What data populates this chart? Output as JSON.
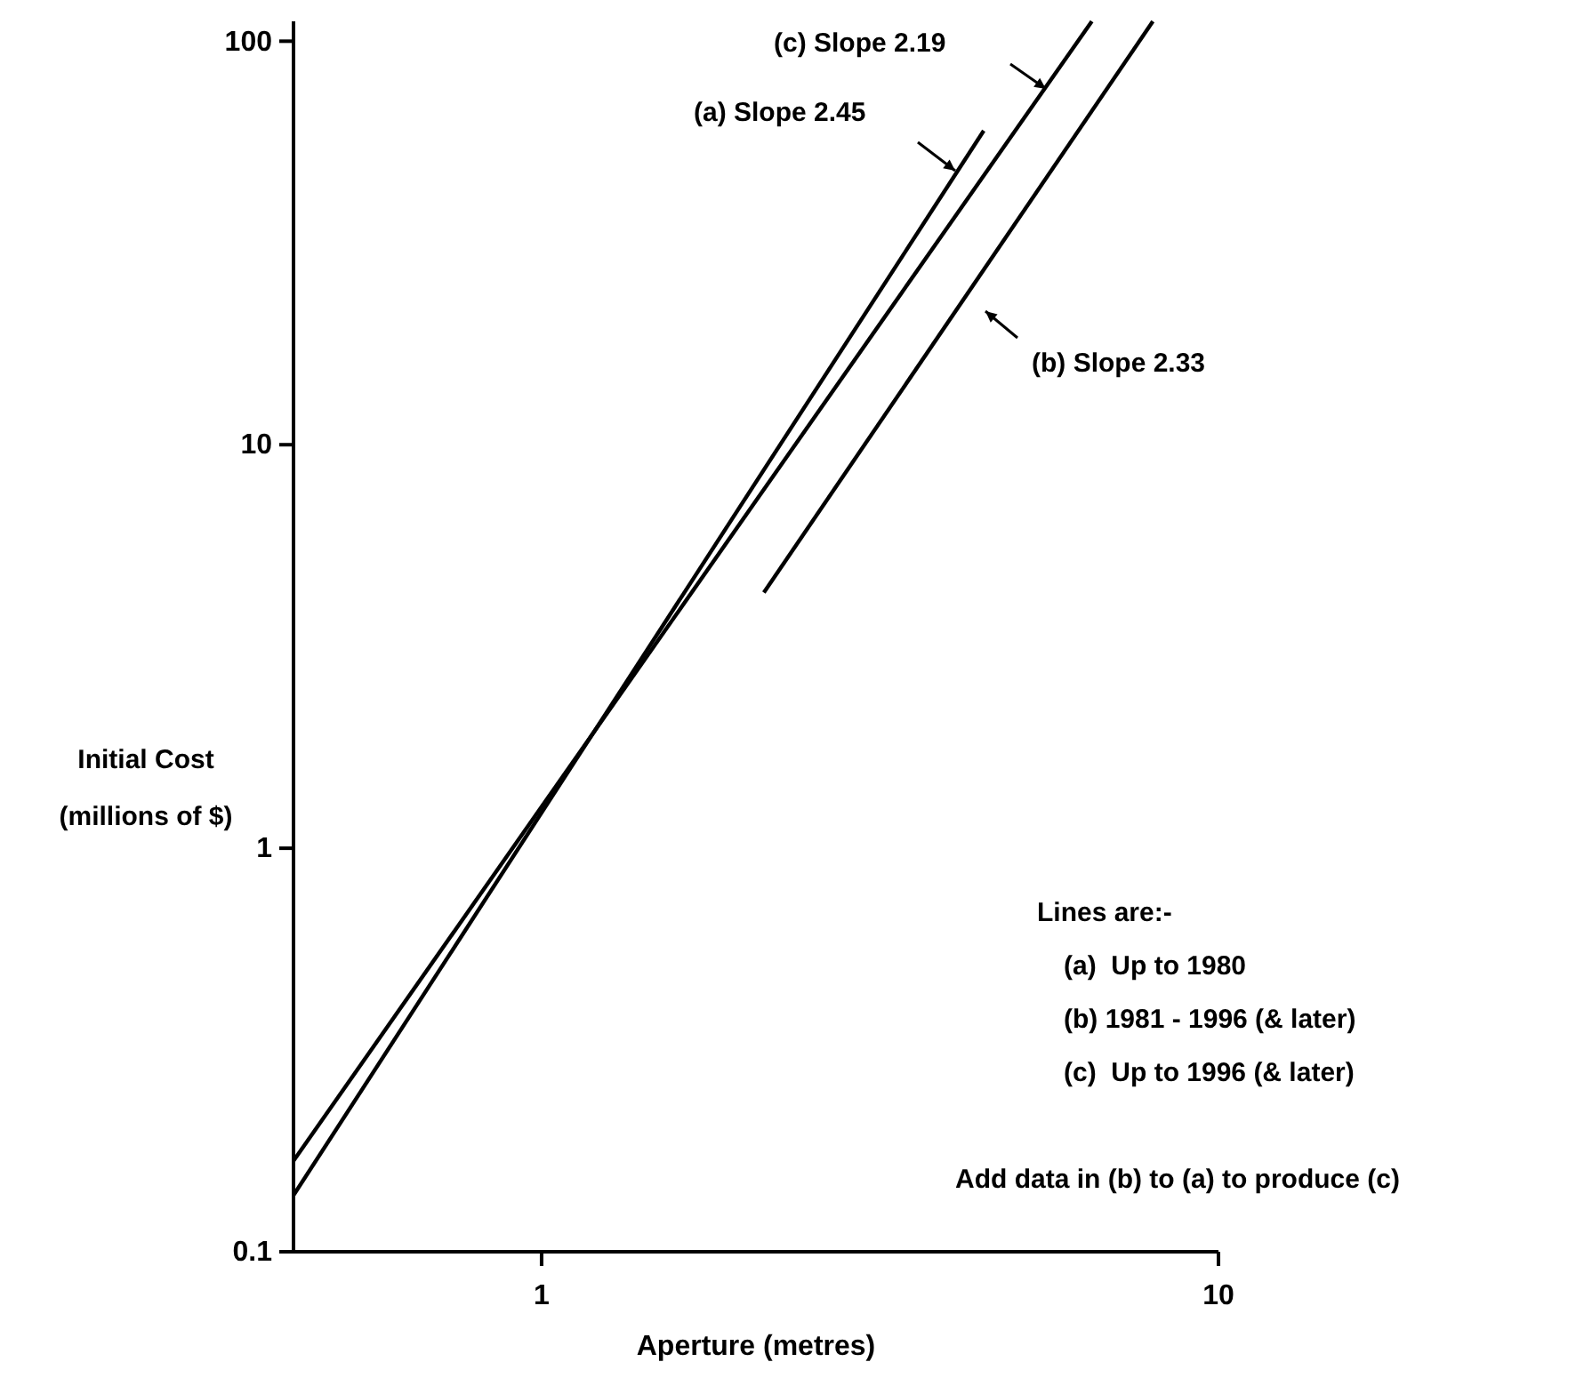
{
  "chart_data": {
    "type": "line",
    "xlabel": "Aperture (metres)",
    "ylabel": "Initial Cost\n(millions of $)",
    "log": "xy",
    "xlim": [
      0.43,
      10
    ],
    "ylim": [
      0.1,
      112
    ],
    "xticks": [
      1,
      10
    ],
    "yticks": [
      0.1,
      1,
      10,
      100
    ],
    "grid": false,
    "marker": "none",
    "line_style": "solid",
    "series": [
      {
        "color": "#000000",
        "x": [
          0.43,
          4.5
        ],
        "values": [
          0.138,
          60
        ]
      },
      {
        "color": "#000000",
        "x": [
          2.13,
          8.0
        ],
        "values": [
          4.3,
          112
        ]
      },
      {
        "color": "#000000",
        "x": [
          0.43,
          6.5
        ],
        "values": [
          0.168,
          112
        ]
      }
    ],
    "annotations": [
      "(c) Slope 2.19",
      "(a) Slope 2.45",
      "(b) Slope 2.33",
      "Lines are:-",
      "(a)  Up to 1980",
      "(b) 1981 - 1996 (& later)",
      "(c)  Up to 1996 (& later)",
      "Add data in (b) to (a) to produce (c)"
    ]
  }
}
